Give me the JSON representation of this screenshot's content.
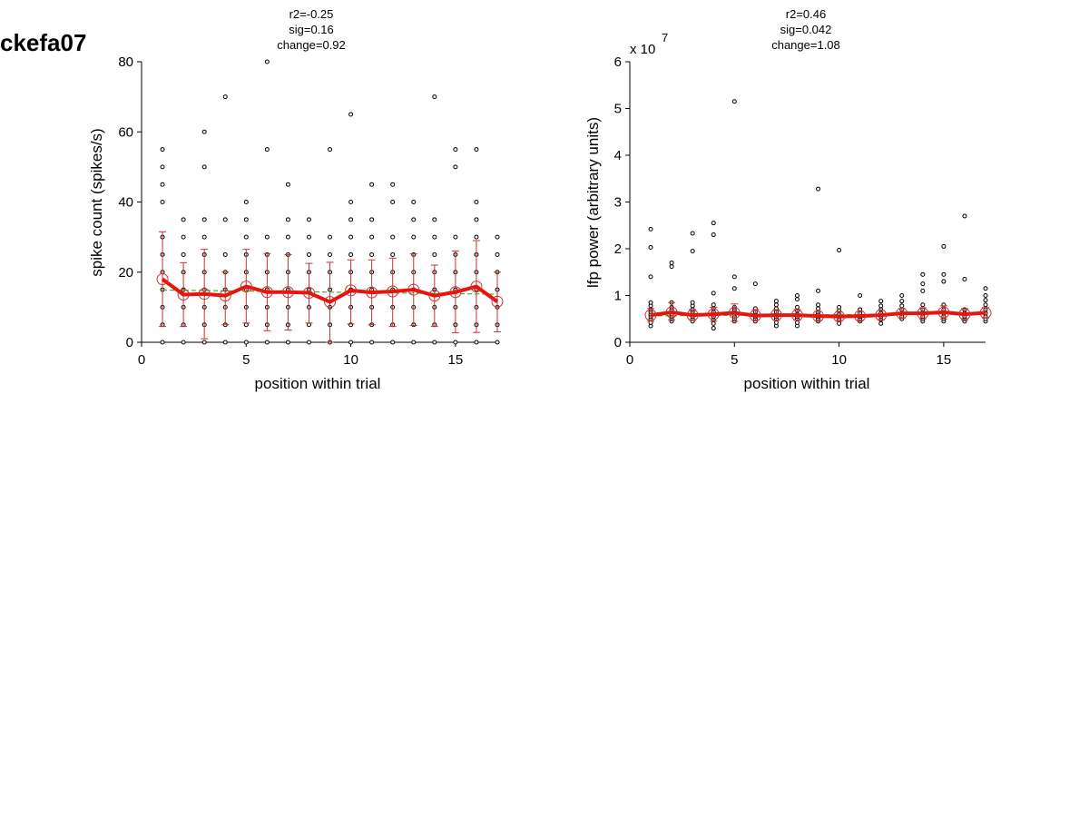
{
  "figure_title": "ckefa07",
  "chart_data": [
    {
      "type": "scatter",
      "annotations": [
        "r2=-0.25",
        "sig=0.16",
        "change=0.92"
      ],
      "xlabel": "position within trial",
      "ylabel": "spike count (spikes/s)",
      "xlim": [
        0,
        17
      ],
      "ylim": [
        0,
        80
      ],
      "xticks": [
        0,
        5,
        10,
        15
      ],
      "yticks": [
        0,
        20,
        40,
        60,
        80
      ],
      "ytick_labels": [
        "0",
        "20",
        "40",
        "60",
        "80"
      ],
      "exponent_label": "",
      "colors": {
        "points": "#000000",
        "mean": "#e8140c",
        "errorbar": "#c83232",
        "fit": "#4caf2a"
      },
      "points": [
        {
          "x": 1,
          "y": [
            0,
            5,
            10,
            15,
            20,
            25,
            30,
            40,
            45,
            50,
            55
          ]
        },
        {
          "x": 2,
          "y": [
            0,
            5,
            10,
            15,
            20,
            25,
            30,
            35
          ]
        },
        {
          "x": 3,
          "y": [
            0,
            5,
            10,
            15,
            20,
            25,
            30,
            35,
            50,
            60
          ]
        },
        {
          "x": 4,
          "y": [
            0,
            5,
            10,
            15,
            20,
            25,
            35,
            70
          ]
        },
        {
          "x": 5,
          "y": [
            0,
            5,
            10,
            15,
            20,
            25,
            30,
            35,
            40
          ]
        },
        {
          "x": 6,
          "y": [
            0,
            5,
            10,
            15,
            20,
            25,
            30,
            55,
            80
          ]
        },
        {
          "x": 7,
          "y": [
            0,
            5,
            10,
            15,
            20,
            25,
            30,
            35,
            45
          ]
        },
        {
          "x": 8,
          "y": [
            0,
            5,
            10,
            15,
            20,
            25,
            30,
            35
          ]
        },
        {
          "x": 9,
          "y": [
            0,
            5,
            10,
            15,
            20,
            25,
            30,
            55
          ]
        },
        {
          "x": 10,
          "y": [
            0,
            5,
            10,
            15,
            20,
            25,
            30,
            35,
            40,
            65
          ]
        },
        {
          "x": 11,
          "y": [
            0,
            5,
            10,
            15,
            20,
            25,
            30,
            35,
            45
          ]
        },
        {
          "x": 12,
          "y": [
            0,
            5,
            10,
            15,
            20,
            25,
            30,
            40,
            45
          ]
        },
        {
          "x": 13,
          "y": [
            0,
            5,
            10,
            15,
            20,
            25,
            30,
            35,
            40
          ]
        },
        {
          "x": 14,
          "y": [
            0,
            5,
            10,
            15,
            20,
            25,
            30,
            35,
            70
          ]
        },
        {
          "x": 15,
          "y": [
            0,
            5,
            10,
            15,
            20,
            25,
            30,
            50,
            55
          ]
        },
        {
          "x": 16,
          "y": [
            0,
            5,
            10,
            15,
            20,
            25,
            30,
            35,
            40,
            55
          ]
        },
        {
          "x": 17,
          "y": [
            0,
            5,
            10,
            15,
            20,
            25,
            30
          ]
        }
      ],
      "mean": {
        "x": [
          1,
          2,
          3,
          4,
          5,
          6,
          7,
          8,
          9,
          10,
          11,
          12,
          13,
          14,
          15,
          16,
          17
        ],
        "y": [
          18,
          13.6,
          13.8,
          13.3,
          15.9,
          14.3,
          14.3,
          14.1,
          11.5,
          14.8,
          14.2,
          14.5,
          15,
          13.3,
          14.3,
          15.9,
          11.6
        ]
      },
      "errorbars": {
        "x": [
          1,
          2,
          3,
          4,
          5,
          6,
          7,
          8,
          9,
          10,
          11,
          12,
          13,
          14,
          15,
          16,
          17
        ],
        "low": [
          4.5,
          4.5,
          1,
          5,
          5.5,
          3.3,
          3.5,
          5.5,
          0,
          5.2,
          5,
          4.5,
          4.8,
          4.5,
          2.7,
          2.8,
          3
        ],
        "high": [
          31.5,
          22.7,
          26.5,
          20,
          26.5,
          25.3,
          25,
          22.5,
          22.8,
          23.5,
          23.5,
          24,
          25.2,
          22,
          26,
          29,
          20
        ]
      },
      "fit": {
        "x": [
          1,
          17
        ],
        "y": [
          14.9,
          13.7
        ]
      }
    },
    {
      "type": "scatter",
      "annotations": [
        "r2=0.46",
        "sig=0.042",
        "change=1.08"
      ],
      "xlabel": "position within trial",
      "ylabel": "lfp power (arbitrary units)",
      "xlim": [
        0,
        17
      ],
      "ylim": [
        0,
        6
      ],
      "xticks": [
        0,
        5,
        10,
        15
      ],
      "yticks": [
        0,
        1,
        2,
        3,
        4,
        5,
        6
      ],
      "ytick_labels": [
        "0",
        "1",
        "2",
        "3",
        "4",
        "5",
        "6"
      ],
      "exponent_label": "x 10",
      "exponent_power": "7",
      "colors": {
        "points": "#000000",
        "mean": "#e8140c",
        "errorbar": "#c83232",
        "fit": "#4caf2a"
      },
      "points": [
        {
          "x": 1,
          "y": [
            0.35,
            0.42,
            0.5,
            0.55,
            0.6,
            0.65,
            0.7,
            0.78,
            0.85,
            1.4,
            2.03,
            2.42
          ]
        },
        {
          "x": 2,
          "y": [
            0.45,
            0.5,
            0.55,
            0.6,
            0.65,
            0.7,
            0.75,
            0.85,
            1.62,
            1.7
          ]
        },
        {
          "x": 3,
          "y": [
            0.45,
            0.5,
            0.55,
            0.6,
            0.65,
            0.7,
            0.78,
            0.85,
            1.95,
            2.33
          ]
        },
        {
          "x": 4,
          "y": [
            0.3,
            0.4,
            0.48,
            0.55,
            0.6,
            0.65,
            0.72,
            0.8,
            1.05,
            2.3,
            2.55
          ]
        },
        {
          "x": 5,
          "y": [
            0.45,
            0.5,
            0.55,
            0.6,
            0.65,
            0.7,
            0.75,
            1.15,
            1.4,
            5.15
          ]
        },
        {
          "x": 6,
          "y": [
            0.45,
            0.5,
            0.55,
            0.6,
            0.65,
            0.72,
            1.25
          ]
        },
        {
          "x": 7,
          "y": [
            0.35,
            0.42,
            0.5,
            0.55,
            0.6,
            0.65,
            0.72,
            0.8,
            0.88
          ]
        },
        {
          "x": 8,
          "y": [
            0.35,
            0.42,
            0.5,
            0.55,
            0.6,
            0.68,
            0.75,
            0.92,
            1.0
          ]
        },
        {
          "x": 9,
          "y": [
            0.45,
            0.5,
            0.55,
            0.6,
            0.65,
            0.72,
            0.8,
            1.1,
            3.28
          ]
        },
        {
          "x": 10,
          "y": [
            0.4,
            0.48,
            0.55,
            0.6,
            0.68,
            0.75,
            1.97
          ]
        },
        {
          "x": 11,
          "y": [
            0.45,
            0.5,
            0.55,
            0.62,
            0.7,
            1.0
          ]
        },
        {
          "x": 12,
          "y": [
            0.4,
            0.48,
            0.55,
            0.62,
            0.7,
            0.78,
            0.88
          ]
        },
        {
          "x": 13,
          "y": [
            0.5,
            0.55,
            0.62,
            0.7,
            0.78,
            0.88,
            1.0
          ]
        },
        {
          "x": 14,
          "y": [
            0.45,
            0.5,
            0.55,
            0.62,
            0.7,
            0.8,
            1.1,
            1.25,
            1.45
          ]
        },
        {
          "x": 15,
          "y": [
            0.45,
            0.5,
            0.55,
            0.62,
            0.7,
            0.8,
            1.3,
            1.45,
            2.05
          ]
        },
        {
          "x": 16,
          "y": [
            0.45,
            0.5,
            0.55,
            0.62,
            0.7,
            1.35,
            2.7
          ]
        },
        {
          "x": 17,
          "y": [
            0.45,
            0.5,
            0.55,
            0.62,
            0.7,
            0.8,
            0.9,
            1.0,
            1.15
          ]
        }
      ],
      "mean": {
        "x": [
          1,
          2,
          3,
          4,
          5,
          6,
          7,
          8,
          9,
          10,
          11,
          12,
          13,
          14,
          15,
          16,
          17
        ],
        "y": [
          0.58,
          0.64,
          0.58,
          0.6,
          0.63,
          0.57,
          0.58,
          0.58,
          0.56,
          0.55,
          0.56,
          0.58,
          0.62,
          0.62,
          0.64,
          0.6,
          0.63
        ]
      },
      "errorbars": {
        "x": [
          1,
          2,
          3,
          4,
          5,
          6,
          7,
          8,
          9,
          10,
          11,
          12,
          13,
          14,
          15,
          16,
          17
        ],
        "low": [
          0.45,
          0.48,
          0.47,
          0.45,
          0.45,
          0.47,
          0.47,
          0.47,
          0.46,
          0.46,
          0.47,
          0.48,
          0.52,
          0.5,
          0.5,
          0.48,
          0.52
        ],
        "high": [
          0.72,
          0.85,
          0.7,
          0.75,
          0.82,
          0.7,
          0.7,
          0.7,
          0.66,
          0.65,
          0.66,
          0.68,
          0.72,
          0.74,
          0.78,
          0.72,
          0.74
        ]
      },
      "fit": {
        "x": [
          1,
          17
        ],
        "y": [
          0.565,
          0.61
        ]
      }
    }
  ]
}
